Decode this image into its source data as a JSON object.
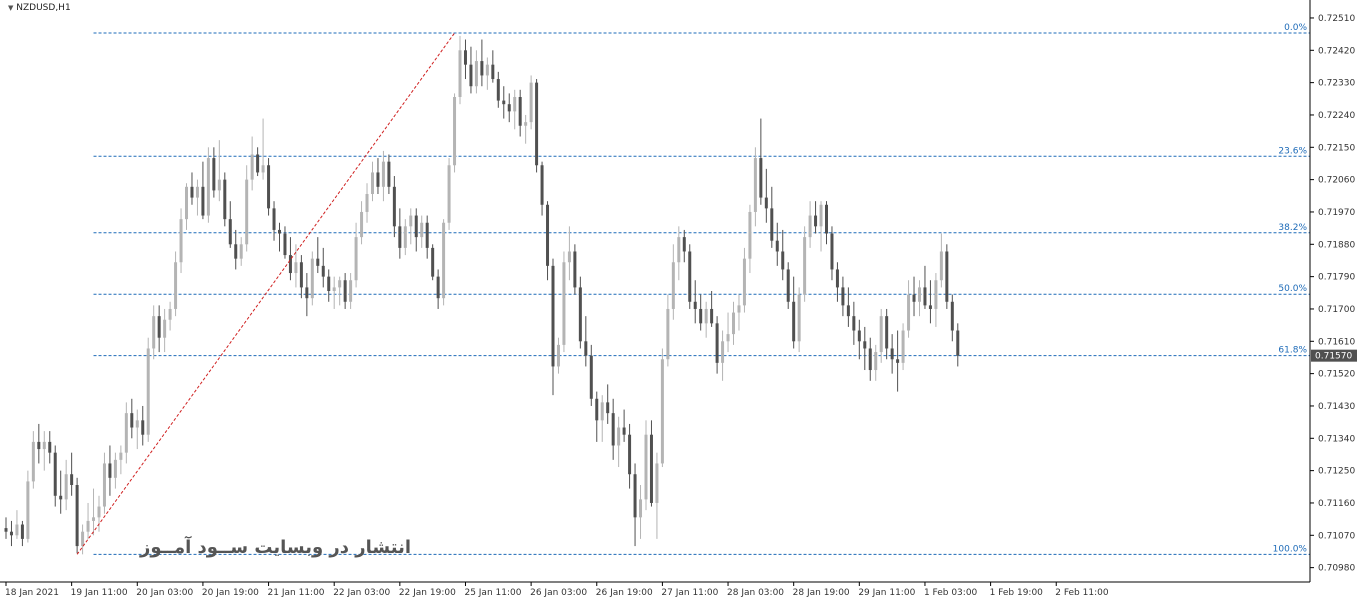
{
  "symbol_label": "NZDUSD,H1",
  "watermark": "انتشار در وبسایت ســود آمــوز",
  "current_price_label": "0.71570",
  "colors": {
    "background": "#ffffff",
    "bull_candle": "#b4b4b4",
    "bear_candle": "#505050",
    "fib_line": "#1e6bb8",
    "fib_label": "#1e6bb8",
    "trend_line": "#d02020",
    "axis_text": "#333333",
    "price_tag_bg": "#505050"
  },
  "chart_data": {
    "type": "candlestick",
    "title": "NZDUSD,H1",
    "ylim": [
      0.7094,
      0.7256
    ],
    "y_ticks": [
      "0.72510",
      "0.72420",
      "0.72330",
      "0.72240",
      "0.72150",
      "0.72060",
      "0.71970",
      "0.71880",
      "0.71790",
      "0.71700",
      "0.71610",
      "0.71520",
      "0.71430",
      "0.71340",
      "0.71250",
      "0.71160",
      "0.71070",
      "0.70980"
    ],
    "x_ticks": [
      "18 Jan 2021",
      "19 Jan 11:00",
      "20 Jan 03:00",
      "20 Jan 19:00",
      "21 Jan 11:00",
      "22 Jan 03:00",
      "22 Jan 19:00",
      "25 Jan 11:00",
      "26 Jan 03:00",
      "26 Jan 19:00",
      "27 Jan 11:00",
      "28 Jan 03:00",
      "28 Jan 19:00",
      "29 Jan 11:00",
      "1 Feb 03:00",
      "1 Feb 19:00",
      "2 Feb 11:00"
    ],
    "fibonacci_levels": [
      {
        "label": "0.0%",
        "price": 0.72468
      },
      {
        "label": "23.6%",
        "price": 0.72125
      },
      {
        "label": "38.2%",
        "price": 0.71912
      },
      {
        "label": "50.0%",
        "price": 0.71741
      },
      {
        "label": "61.8%",
        "price": 0.7157
      },
      {
        "label": "100.0%",
        "price": 0.71017
      }
    ],
    "trend_line": {
      "from": {
        "index": 13,
        "price": 0.71017
      },
      "to": {
        "index": 82,
        "price": 0.72468
      }
    },
    "current_price": 0.7157,
    "candles_ohlc": [
      [
        0.7109,
        0.7112,
        0.7106,
        0.7108
      ],
      [
        0.7108,
        0.7111,
        0.7104,
        0.7107
      ],
      [
        0.7107,
        0.7114,
        0.7106,
        0.711
      ],
      [
        0.711,
        0.7111,
        0.7104,
        0.7106
      ],
      [
        0.7106,
        0.7125,
        0.7105,
        0.7122
      ],
      [
        0.7122,
        0.7136,
        0.712,
        0.7133
      ],
      [
        0.7133,
        0.7138,
        0.7127,
        0.7131
      ],
      [
        0.7131,
        0.7136,
        0.7125,
        0.7133
      ],
      [
        0.7133,
        0.7136,
        0.7127,
        0.713
      ],
      [
        0.713,
        0.7132,
        0.7115,
        0.7118
      ],
      [
        0.7118,
        0.7125,
        0.7113,
        0.7117
      ],
      [
        0.7117,
        0.7128,
        0.7114,
        0.7124
      ],
      [
        0.7124,
        0.713,
        0.7118,
        0.7121
      ],
      [
        0.7121,
        0.7123,
        0.7102,
        0.7104
      ],
      [
        0.7104,
        0.711,
        0.71017,
        0.7108
      ],
      [
        0.7108,
        0.7116,
        0.7106,
        0.7111
      ],
      [
        0.7111,
        0.712,
        0.7107,
        0.7112
      ],
      [
        0.7112,
        0.7118,
        0.7108,
        0.7115
      ],
      [
        0.7115,
        0.713,
        0.7113,
        0.7127
      ],
      [
        0.7127,
        0.7132,
        0.7118,
        0.7123
      ],
      [
        0.7123,
        0.713,
        0.712,
        0.7128
      ],
      [
        0.7128,
        0.7132,
        0.7124,
        0.713
      ],
      [
        0.713,
        0.7144,
        0.7127,
        0.7141
      ],
      [
        0.7141,
        0.7145,
        0.7134,
        0.7137
      ],
      [
        0.7137,
        0.7142,
        0.7131,
        0.7139
      ],
      [
        0.7139,
        0.7143,
        0.7132,
        0.7135
      ],
      [
        0.7135,
        0.7162,
        0.7133,
        0.7159
      ],
      [
        0.7159,
        0.7171,
        0.7156,
        0.7168
      ],
      [
        0.7168,
        0.7171,
        0.7158,
        0.7162
      ],
      [
        0.7162,
        0.717,
        0.7158,
        0.7167
      ],
      [
        0.7167,
        0.7172,
        0.7164,
        0.717
      ],
      [
        0.717,
        0.7186,
        0.7168,
        0.7183
      ],
      [
        0.7183,
        0.7198,
        0.718,
        0.7195
      ],
      [
        0.7195,
        0.7205,
        0.7192,
        0.7204
      ],
      [
        0.7204,
        0.7208,
        0.7199,
        0.7201
      ],
      [
        0.7201,
        0.7206,
        0.7196,
        0.7204
      ],
      [
        0.7204,
        0.7211,
        0.7195,
        0.7196
      ],
      [
        0.7196,
        0.7215,
        0.7194,
        0.7212
      ],
      [
        0.7212,
        0.7215,
        0.7201,
        0.7203
      ],
      [
        0.7203,
        0.7217,
        0.72,
        0.7206
      ],
      [
        0.7206,
        0.7208,
        0.7193,
        0.7195
      ],
      [
        0.7195,
        0.72,
        0.7187,
        0.7188
      ],
      [
        0.7188,
        0.7192,
        0.7181,
        0.7184
      ],
      [
        0.7184,
        0.719,
        0.7182,
        0.7188
      ],
      [
        0.7188,
        0.721,
        0.7186,
        0.7206
      ],
      [
        0.7206,
        0.7218,
        0.7203,
        0.7213
      ],
      [
        0.7213,
        0.7215,
        0.7207,
        0.7208
      ],
      [
        0.7208,
        0.7223,
        0.7206,
        0.721
      ],
      [
        0.721,
        0.7212,
        0.7196,
        0.7198
      ],
      [
        0.7198,
        0.72,
        0.7189,
        0.7192
      ],
      [
        0.7192,
        0.7194,
        0.7186,
        0.7191
      ],
      [
        0.7191,
        0.7193,
        0.7184,
        0.7185
      ],
      [
        0.7185,
        0.719,
        0.7178,
        0.718
      ],
      [
        0.718,
        0.7188,
        0.7176,
        0.7183
      ],
      [
        0.7183,
        0.7185,
        0.7173,
        0.7176
      ],
      [
        0.7176,
        0.718,
        0.7168,
        0.7173
      ],
      [
        0.7173,
        0.7186,
        0.7171,
        0.7184
      ],
      [
        0.7184,
        0.719,
        0.718,
        0.7182
      ],
      [
        0.7182,
        0.7187,
        0.7176,
        0.7179
      ],
      [
        0.7179,
        0.7181,
        0.7172,
        0.7175
      ],
      [
        0.7175,
        0.7179,
        0.717,
        0.7176
      ],
      [
        0.7176,
        0.7179,
        0.7171,
        0.7178
      ],
      [
        0.7178,
        0.718,
        0.717,
        0.7172
      ],
      [
        0.7172,
        0.718,
        0.717,
        0.7178
      ],
      [
        0.7178,
        0.7194,
        0.7176,
        0.719
      ],
      [
        0.719,
        0.72,
        0.7188,
        0.7197
      ],
      [
        0.7197,
        0.7205,
        0.7194,
        0.7202
      ],
      [
        0.7202,
        0.7211,
        0.72,
        0.7208
      ],
      [
        0.7208,
        0.7212,
        0.7202,
        0.7204
      ],
      [
        0.7204,
        0.7214,
        0.72,
        0.7211
      ],
      [
        0.7211,
        0.7213,
        0.7202,
        0.7204
      ],
      [
        0.7204,
        0.7207,
        0.719,
        0.7193
      ],
      [
        0.7193,
        0.7198,
        0.7184,
        0.7187
      ],
      [
        0.7187,
        0.7195,
        0.7185,
        0.7193
      ],
      [
        0.7193,
        0.7198,
        0.7188,
        0.7196
      ],
      [
        0.7196,
        0.7198,
        0.7186,
        0.719
      ],
      [
        0.719,
        0.7196,
        0.7187,
        0.7194
      ],
      [
        0.7194,
        0.7196,
        0.7184,
        0.7187
      ],
      [
        0.7187,
        0.7188,
        0.7178,
        0.7179
      ],
      [
        0.7179,
        0.7181,
        0.717,
        0.7173
      ],
      [
        0.7173,
        0.7195,
        0.7171,
        0.7194
      ],
      [
        0.7194,
        0.7212,
        0.7192,
        0.721
      ],
      [
        0.721,
        0.723,
        0.7208,
        0.7229
      ],
      [
        0.7229,
        0.7246,
        0.7227,
        0.7242
      ],
      [
        0.7242,
        0.7245,
        0.7234,
        0.7238
      ],
      [
        0.7238,
        0.7243,
        0.723,
        0.7232
      ],
      [
        0.7232,
        0.7242,
        0.723,
        0.7239
      ],
      [
        0.7239,
        0.7245,
        0.7232,
        0.7235
      ],
      [
        0.7235,
        0.724,
        0.7231,
        0.7238
      ],
      [
        0.7238,
        0.7242,
        0.7233,
        0.7234
      ],
      [
        0.7234,
        0.7236,
        0.7226,
        0.7228
      ],
      [
        0.7228,
        0.7232,
        0.7223,
        0.7227
      ],
      [
        0.7227,
        0.723,
        0.7222,
        0.7225
      ],
      [
        0.7225,
        0.7231,
        0.722,
        0.7229
      ],
      [
        0.7229,
        0.7231,
        0.7218,
        0.7221
      ],
      [
        0.7221,
        0.7224,
        0.7216,
        0.7222
      ],
      [
        0.7222,
        0.7235,
        0.722,
        0.7233
      ],
      [
        0.7233,
        0.7234,
        0.7208,
        0.721
      ],
      [
        0.721,
        0.7211,
        0.7196,
        0.7199
      ],
      [
        0.7199,
        0.72,
        0.7178,
        0.7182
      ],
      [
        0.7182,
        0.7184,
        0.7146,
        0.7154
      ],
      [
        0.7154,
        0.7162,
        0.7152,
        0.716
      ],
      [
        0.716,
        0.7186,
        0.7158,
        0.7183
      ],
      [
        0.7183,
        0.7193,
        0.7178,
        0.7186
      ],
      [
        0.7186,
        0.7188,
        0.7174,
        0.7176
      ],
      [
        0.7176,
        0.7179,
        0.7159,
        0.7161
      ],
      [
        0.7161,
        0.7168,
        0.7154,
        0.7157
      ],
      [
        0.7157,
        0.716,
        0.7143,
        0.7145
      ],
      [
        0.7145,
        0.7147,
        0.7133,
        0.7139
      ],
      [
        0.7139,
        0.7146,
        0.7133,
        0.7144
      ],
      [
        0.7144,
        0.7149,
        0.7138,
        0.7141
      ],
      [
        0.7141,
        0.7145,
        0.7128,
        0.7132
      ],
      [
        0.7132,
        0.714,
        0.7126,
        0.7137
      ],
      [
        0.7137,
        0.7142,
        0.7133,
        0.7135
      ],
      [
        0.7135,
        0.7138,
        0.712,
        0.7124
      ],
      [
        0.7124,
        0.7127,
        0.7104,
        0.7112
      ],
      [
        0.7112,
        0.7121,
        0.7106,
        0.7117
      ],
      [
        0.7117,
        0.7139,
        0.7114,
        0.7135
      ],
      [
        0.7135,
        0.7139,
        0.7115,
        0.7116
      ],
      [
        0.7116,
        0.713,
        0.7106,
        0.7127
      ],
      [
        0.7127,
        0.7159,
        0.7126,
        0.7156
      ],
      [
        0.7156,
        0.7174,
        0.7154,
        0.717
      ],
      [
        0.717,
        0.7188,
        0.7167,
        0.7183
      ],
      [
        0.7183,
        0.7193,
        0.7178,
        0.719
      ],
      [
        0.719,
        0.7192,
        0.7183,
        0.7186
      ],
      [
        0.7186,
        0.7188,
        0.717,
        0.7172
      ],
      [
        0.7172,
        0.7178,
        0.7166,
        0.717
      ],
      [
        0.717,
        0.7174,
        0.7164,
        0.7166
      ],
      [
        0.7166,
        0.7172,
        0.7162,
        0.717
      ],
      [
        0.717,
        0.7175,
        0.7165,
        0.7166
      ],
      [
        0.7166,
        0.7168,
        0.7152,
        0.7155
      ],
      [
        0.7155,
        0.7164,
        0.715,
        0.7161
      ],
      [
        0.7161,
        0.7169,
        0.7158,
        0.7163
      ],
      [
        0.7163,
        0.7172,
        0.716,
        0.7169
      ],
      [
        0.7169,
        0.7174,
        0.7164,
        0.7171
      ],
      [
        0.7171,
        0.7187,
        0.7169,
        0.7184
      ],
      [
        0.7184,
        0.7199,
        0.718,
        0.7197
      ],
      [
        0.7197,
        0.7215,
        0.7193,
        0.7212
      ],
      [
        0.7212,
        0.7223,
        0.7199,
        0.7201
      ],
      [
        0.7201,
        0.7209,
        0.7194,
        0.7198
      ],
      [
        0.7198,
        0.7204,
        0.7187,
        0.7189
      ],
      [
        0.7189,
        0.7194,
        0.7182,
        0.7186
      ],
      [
        0.7186,
        0.7192,
        0.7178,
        0.7181
      ],
      [
        0.7181,
        0.7183,
        0.717,
        0.7172
      ],
      [
        0.7172,
        0.7179,
        0.7159,
        0.7161
      ],
      [
        0.7161,
        0.7176,
        0.7158,
        0.7174
      ],
      [
        0.7174,
        0.7193,
        0.7172,
        0.719
      ],
      [
        0.719,
        0.72,
        0.7187,
        0.7196
      ],
      [
        0.7196,
        0.72,
        0.7191,
        0.7193
      ],
      [
        0.7193,
        0.72,
        0.7186,
        0.7199
      ],
      [
        0.7199,
        0.72,
        0.7188,
        0.7191
      ],
      [
        0.7191,
        0.7193,
        0.7178,
        0.7181
      ],
      [
        0.7181,
        0.7183,
        0.7172,
        0.7176
      ],
      [
        0.7176,
        0.7179,
        0.7168,
        0.7171
      ],
      [
        0.7171,
        0.7176,
        0.7165,
        0.7168
      ],
      [
        0.7168,
        0.7172,
        0.716,
        0.7164
      ],
      [
        0.7164,
        0.7167,
        0.7156,
        0.7161
      ],
      [
        0.7161,
        0.7165,
        0.7153,
        0.7159
      ],
      [
        0.7159,
        0.7162,
        0.715,
        0.7153
      ],
      [
        0.7153,
        0.716,
        0.715,
        0.7158
      ],
      [
        0.7158,
        0.717,
        0.7155,
        0.7168
      ],
      [
        0.7168,
        0.717,
        0.7156,
        0.7159
      ],
      [
        0.7159,
        0.7163,
        0.7152,
        0.7156
      ],
      [
        0.7156,
        0.7164,
        0.7147,
        0.7155
      ],
      [
        0.7155,
        0.7166,
        0.7153,
        0.7164
      ],
      [
        0.7164,
        0.7178,
        0.7162,
        0.7174
      ],
      [
        0.7174,
        0.7179,
        0.7168,
        0.7172
      ],
      [
        0.7172,
        0.7178,
        0.7168,
        0.7176
      ],
      [
        0.7176,
        0.7182,
        0.717,
        0.7171
      ],
      [
        0.7171,
        0.7178,
        0.7166,
        0.717
      ],
      [
        0.717,
        0.718,
        0.7165,
        0.7178
      ],
      [
        0.7178,
        0.7191,
        0.7176,
        0.7186
      ],
      [
        0.7186,
        0.7188,
        0.717,
        0.7172
      ],
      [
        0.7172,
        0.7174,
        0.7161,
        0.7164
      ],
      [
        0.7164,
        0.7166,
        0.7154,
        0.7157
      ]
    ]
  }
}
